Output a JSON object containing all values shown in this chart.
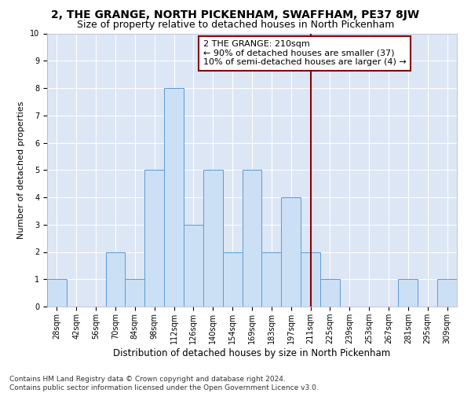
{
  "title": "2, THE GRANGE, NORTH PICKENHAM, SWAFFHAM, PE37 8JW",
  "subtitle": "Size of property relative to detached houses in North Pickenham",
  "xlabel": "Distribution of detached houses by size in North Pickenham",
  "ylabel": "Number of detached properties",
  "bin_labels": [
    "28sqm",
    "42sqm",
    "56sqm",
    "70sqm",
    "84sqm",
    "98sqm",
    "112sqm",
    "126sqm",
    "140sqm",
    "154sqm",
    "169sqm",
    "183sqm",
    "197sqm",
    "211sqm",
    "225sqm",
    "239sqm",
    "253sqm",
    "267sqm",
    "281sqm",
    "295sqm",
    "309sqm"
  ],
  "bar_heights": [
    1,
    0,
    0,
    2,
    1,
    5,
    8,
    3,
    5,
    2,
    5,
    2,
    4,
    2,
    1,
    0,
    0,
    0,
    1,
    0,
    1
  ],
  "bar_color": "#cce0f5",
  "bar_edge_color": "#5b9bd5",
  "vline_x_idx": 13,
  "vline_color": "#8b0000",
  "annotation_text": "2 THE GRANGE: 210sqm\n← 90% of detached houses are smaller (37)\n10% of semi-detached houses are larger (4) →",
  "annotation_box_color": "#8b0000",
  "ylim": [
    0,
    10
  ],
  "yticks": [
    0,
    1,
    2,
    3,
    4,
    5,
    6,
    7,
    8,
    9,
    10
  ],
  "plot_bg_color": "#dce6f5",
  "footnote": "Contains HM Land Registry data © Crown copyright and database right 2024.\nContains public sector information licensed under the Open Government Licence v3.0.",
  "title_fontsize": 10,
  "subtitle_fontsize": 9,
  "xlabel_fontsize": 8.5,
  "ylabel_fontsize": 8,
  "tick_fontsize": 7,
  "annotation_fontsize": 8,
  "footnote_fontsize": 6.5
}
